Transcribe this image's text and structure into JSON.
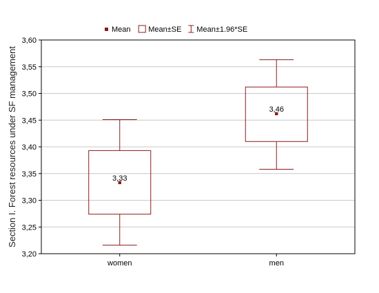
{
  "chart_data": {
    "type": "box",
    "ylabel": "Section I. Forest resources under SF management",
    "ylim": [
      3.2,
      3.6
    ],
    "yticks": [
      "3,20",
      "3,25",
      "3,30",
      "3,35",
      "3,40",
      "3,45",
      "3,50",
      "3,55",
      "3,60"
    ],
    "ytick_values": [
      3.2,
      3.25,
      3.3,
      3.35,
      3.4,
      3.45,
      3.5,
      3.55,
      3.6
    ],
    "grid": true,
    "legend_placement": "top",
    "legend": [
      {
        "label": "Mean",
        "marker": "point"
      },
      {
        "label": "Mean±SE",
        "marker": "box"
      },
      {
        "label": "Mean±1.96*SE",
        "marker": "whisker"
      }
    ],
    "categories": [
      "women",
      "men"
    ],
    "groups": [
      {
        "category": "women",
        "mean": 3.333,
        "se_low": 3.274,
        "se_high": 3.393,
        "ci_low": 3.216,
        "ci_high": 3.451,
        "label": "3,33"
      },
      {
        "category": "men",
        "mean": 3.462,
        "se_low": 3.41,
        "se_high": 3.512,
        "ci_low": 3.358,
        "ci_high": 3.563,
        "label": "3,46"
      }
    ],
    "colors": {
      "box": "#8b1a1a",
      "mean_marker": "#8b1a1a",
      "grid": "#c8c8c8",
      "axis": "#000000"
    }
  }
}
